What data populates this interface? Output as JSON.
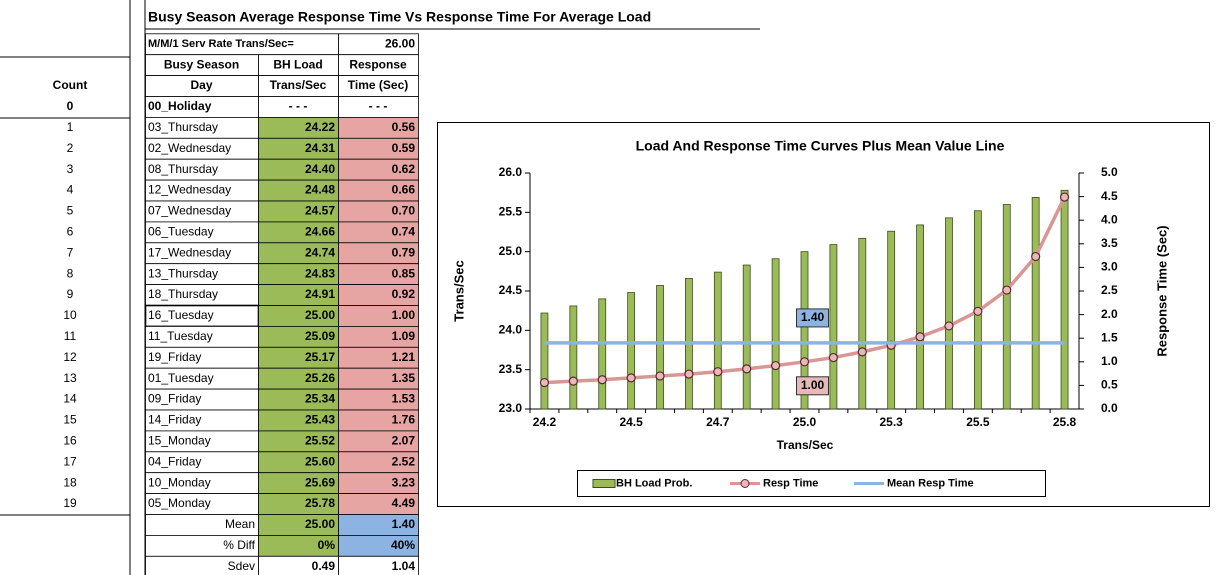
{
  "table": {
    "title": "Busy Season Average Response Time Vs Response Time For Average Load",
    "serv_rate_label": "M/M/1 Serv Rate Trans/Sec=",
    "serv_rate": "26.00",
    "header_1": [
      "Busy Season",
      "BH Load",
      "Response"
    ],
    "header_2": [
      "Count",
      "Day",
      "Trans/Sec",
      "Time (Sec)"
    ],
    "rows": [
      [
        "0",
        "00_Holiday",
        "- - -",
        "- - -"
      ],
      [
        "1",
        "03_Thursday",
        "24.22",
        "0.56"
      ],
      [
        "2",
        "02_Wednesday",
        "24.31",
        "0.59"
      ],
      [
        "3",
        "08_Thursday",
        "24.40",
        "0.62"
      ],
      [
        "4",
        "12_Wednesday",
        "24.48",
        "0.66"
      ],
      [
        "5",
        "07_Wednesday",
        "24.57",
        "0.70"
      ],
      [
        "6",
        "06_Tuesday",
        "24.66",
        "0.74"
      ],
      [
        "7",
        "17_Wednesday",
        "24.74",
        "0.79"
      ],
      [
        "8",
        "13_Thursday",
        "24.83",
        "0.85"
      ],
      [
        "9",
        "18_Thursday",
        "24.91",
        "0.92"
      ],
      [
        "10",
        "16_Tuesday",
        "25.00",
        "1.00"
      ],
      [
        "11",
        "11_Tuesday",
        "25.09",
        "1.09"
      ],
      [
        "12",
        "19_Friday",
        "25.17",
        "1.21"
      ],
      [
        "13",
        "01_Tuesday",
        "25.26",
        "1.35"
      ],
      [
        "14",
        "09_Friday",
        "25.34",
        "1.53"
      ],
      [
        "15",
        "14_Friday",
        "25.43",
        "1.76"
      ],
      [
        "16",
        "15_Monday",
        "25.52",
        "2.07"
      ],
      [
        "17",
        "04_Friday",
        "25.60",
        "2.52"
      ],
      [
        "18",
        "10_Monday",
        "25.69",
        "3.23"
      ],
      [
        "19",
        "05_Monday",
        "25.78",
        "4.49"
      ]
    ],
    "footer": [
      [
        "Mean",
        "25.00",
        "1.40"
      ],
      [
        "% Diff",
        "0%",
        "40%"
      ],
      [
        "Sdev",
        "0.49",
        "1.04"
      ]
    ]
  },
  "chart_data": {
    "type": "bar",
    "title": "Load And Response Time Curves Plus Mean Value Line",
    "x_label": "Trans/Sec",
    "y_label": "Trans/Sec",
    "y2_label": "Response Time (Sec)",
    "categories": [
      "24.2",
      null,
      null,
      "24.5",
      null,
      null,
      "24.7",
      null,
      null,
      "25.0",
      null,
      null,
      "25.3",
      null,
      null,
      "25.5",
      null,
      null,
      "25.8"
    ],
    "ylim": [
      23,
      26
    ],
    "yticks": [
      {
        "value": 23,
        "label": "23.0"
      },
      {
        "value": 23.5,
        "label": "23.5"
      },
      {
        "value": 24,
        "label": "24.0"
      },
      {
        "value": 24.5,
        "label": "24.5"
      },
      {
        "value": 25,
        "label": "25.0"
      },
      {
        "value": 25.5,
        "label": "25.5"
      },
      {
        "value": 26,
        "label": "26.0"
      }
    ],
    "y2lim": [
      0,
      5
    ],
    "y2ticks": [
      {
        "value": 0,
        "label": "0.0"
      },
      {
        "value": 0.5,
        "label": "0.5"
      },
      {
        "value": 1,
        "label": "1.0"
      },
      {
        "value": 1.5,
        "label": "1.5"
      },
      {
        "value": 2,
        "label": "2.0"
      },
      {
        "value": 2.5,
        "label": "2.5"
      },
      {
        "value": 3,
        "label": "3.0"
      },
      {
        "value": 3.5,
        "label": "3.5"
      },
      {
        "value": 4,
        "label": "4.0"
      },
      {
        "value": 4.5,
        "label": "4.5"
      },
      {
        "value": 5,
        "label": "5.0"
      }
    ],
    "grid": false,
    "legend": "bottom",
    "series": [
      {
        "name": "BH Load Prob.",
        "type": "bar",
        "color": "#9bbb59",
        "values": [
          24.22,
          24.31,
          24.4,
          24.48,
          24.57,
          24.66,
          24.74,
          24.83,
          24.91,
          25.0,
          25.09,
          25.17,
          25.26,
          25.34,
          25.43,
          25.52,
          25.6,
          25.69,
          25.78
        ]
      },
      {
        "name": "Resp Time",
        "type": "line",
        "axis": "y2",
        "color": "#d99694",
        "values": [
          0.56,
          0.59,
          0.62,
          0.66,
          0.7,
          0.74,
          0.79,
          0.85,
          0.92,
          1.0,
          1.09,
          1.21,
          1.35,
          1.53,
          1.76,
          2.07,
          2.52,
          3.23,
          4.49
        ],
        "value_labels": [
          null,
          null,
          null,
          null,
          null,
          null,
          null,
          null,
          null,
          "1.00",
          null,
          null,
          null,
          null,
          null,
          null,
          null,
          null,
          null
        ]
      },
      {
        "name": "Mean Resp Time",
        "type": "line",
        "axis": "y2",
        "color": "#8db3e2",
        "values": [
          1.4,
          1.4,
          1.4,
          1.4,
          1.4,
          1.4,
          1.4,
          1.4,
          1.4,
          1.4,
          1.4,
          1.4,
          1.4,
          1.4,
          1.4,
          1.4,
          1.4,
          1.4,
          1.4
        ],
        "value_labels": [
          null,
          null,
          null,
          null,
          null,
          null,
          null,
          null,
          null,
          "1.40",
          null,
          null,
          null,
          null,
          null,
          null,
          null,
          null,
          null
        ]
      }
    ]
  }
}
